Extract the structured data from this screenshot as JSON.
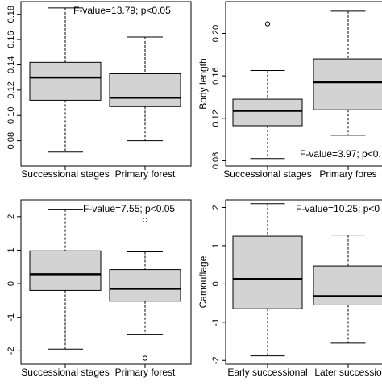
{
  "chart_data": [
    {
      "type": "box",
      "ylabel": "",
      "annotation": "F-value=13.79; p<0.05",
      "ylim": [
        0.06,
        0.19
      ],
      "yticks": [
        0.08,
        0.1,
        0.12,
        0.14,
        0.16,
        0.18
      ],
      "ytick_labels": [
        "0.08",
        "0.10",
        "0.12",
        "0.14",
        "0.16",
        "0.18"
      ],
      "categories": [
        "Successional stages",
        "Primary forest"
      ],
      "boxes": [
        {
          "min": 0.071,
          "q1": 0.112,
          "median": 0.13,
          "q3": 0.142,
          "max": 0.185,
          "outliers": []
        },
        {
          "min": 0.08,
          "q1": 0.107,
          "median": 0.114,
          "q3": 0.133,
          "max": 0.162,
          "outliers": []
        }
      ]
    },
    {
      "type": "box",
      "ylabel": "Body length",
      "annotation": "F-value=3.97; p<0.",
      "ylim": [
        0.075,
        0.23
      ],
      "yticks": [
        0.08,
        0.12,
        0.16,
        0.2
      ],
      "ytick_labels": [
        "0.08",
        "0.12",
        "0.16",
        "0.20"
      ],
      "categories": [
        "Successional stages",
        "Primary fores"
      ],
      "boxes": [
        {
          "min": 0.082,
          "q1": 0.113,
          "median": 0.127,
          "q3": 0.138,
          "max": 0.165,
          "outliers": [
            0.209
          ]
        },
        {
          "min": 0.104,
          "q1": 0.128,
          "median": 0.154,
          "q3": 0.176,
          "max": 0.221,
          "outliers": []
        }
      ]
    },
    {
      "type": "box",
      "ylabel": "",
      "annotation": "F-value=7.55; p<0.05",
      "ylim": [
        -2.4,
        2.5
      ],
      "yticks": [
        -2,
        -1,
        0,
        1,
        2
      ],
      "ytick_labels": [
        "-2",
        "-1",
        "0",
        "1",
        "2"
      ],
      "categories": [
        "Successional stages",
        "Primary forest"
      ],
      "boxes": [
        {
          "min": -1.95,
          "q1": -0.2,
          "median": 0.28,
          "q3": 0.98,
          "max": 2.22,
          "outliers": []
        },
        {
          "min": -1.52,
          "q1": -0.52,
          "median": -0.15,
          "q3": 0.42,
          "max": 0.95,
          "outliers": [
            1.9,
            -2.22
          ]
        }
      ]
    },
    {
      "type": "box",
      "ylabel": "Camouflage",
      "annotation": "F-value=10.25; p<0",
      "ylim": [
        -2.1,
        2.2
      ],
      "yticks": [
        -2,
        -1,
        0,
        1,
        2
      ],
      "ytick_labels": [
        "-2",
        "-1",
        "0",
        "1",
        "2"
      ],
      "categories": [
        "Early successional",
        "Later successio"
      ],
      "boxes": [
        {
          "min": -1.88,
          "q1": -0.65,
          "median": 0.13,
          "q3": 1.25,
          "max": 2.1,
          "outliers": []
        },
        {
          "min": -1.55,
          "q1": -0.55,
          "median": -0.32,
          "q3": 0.47,
          "max": 1.28,
          "outliers": []
        }
      ]
    }
  ]
}
